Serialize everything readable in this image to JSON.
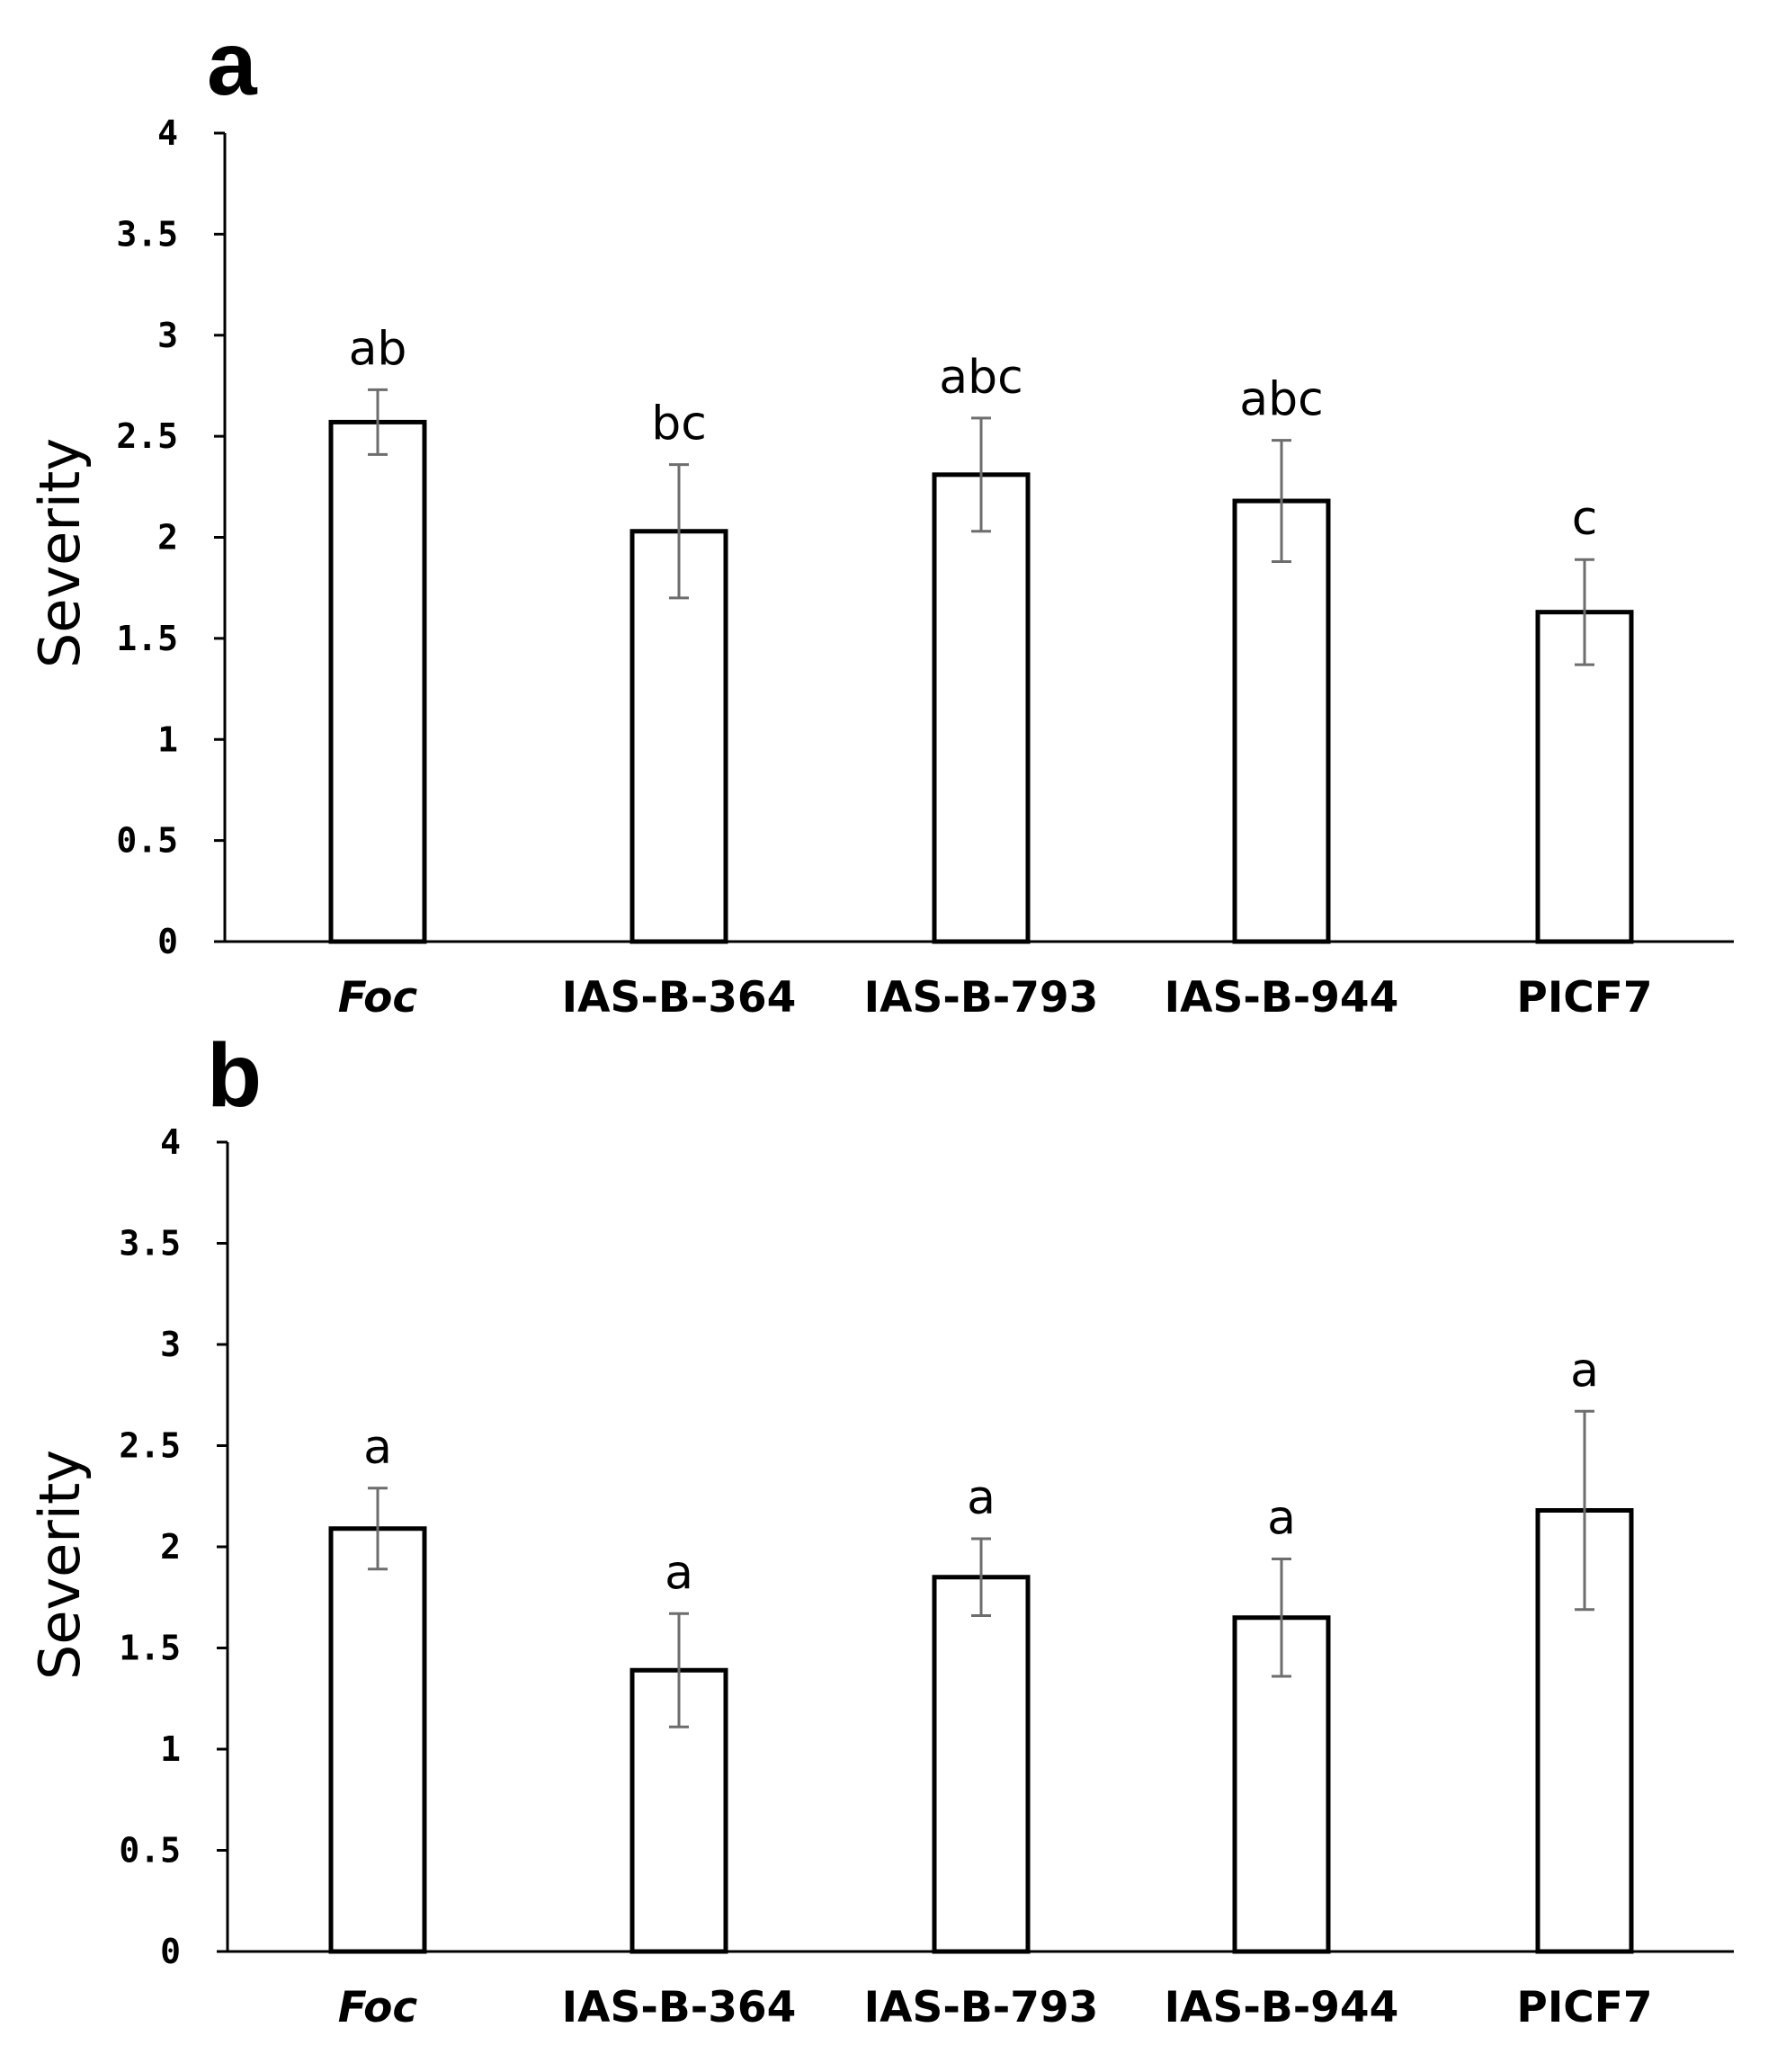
{
  "chart_data": [
    {
      "type": "bar",
      "panel": "a",
      "categories": [
        "Foc",
        "IAS-B-364",
        "IAS-B-793",
        "IAS-B-944",
        "PICF7"
      ],
      "values": [
        2.57,
        2.03,
        2.31,
        2.18,
        1.63
      ],
      "errors": [
        0.16,
        0.33,
        0.28,
        0.3,
        0.26
      ],
      "significance": [
        "ab",
        "bc",
        "abc",
        "abc",
        "c"
      ],
      "ylabel": "Severity",
      "xlabel": "",
      "ylim": [
        0,
        4
      ],
      "yticks": [
        "0",
        "0.5",
        "1",
        "1.5",
        "2",
        "2.5",
        "3",
        "3.5",
        "4"
      ],
      "grid": false,
      "legend": "none"
    },
    {
      "type": "bar",
      "panel": "b",
      "categories": [
        "Foc",
        "IAS-B-364",
        "IAS-B-793",
        "IAS-B-944",
        "PICF7"
      ],
      "values": [
        2.09,
        1.39,
        1.85,
        1.65,
        2.18
      ],
      "errors": [
        0.2,
        0.28,
        0.19,
        0.29,
        0.49
      ],
      "significance": [
        "a",
        "a",
        "a",
        "a",
        "a"
      ],
      "ylabel": "Severity",
      "xlabel": "",
      "ylim": [
        0,
        4
      ],
      "yticks": [
        "0",
        "0.5",
        "1",
        "1.5",
        "2",
        "2.5",
        "3",
        "3.5",
        "4"
      ],
      "grid": false,
      "legend": "none"
    }
  ]
}
